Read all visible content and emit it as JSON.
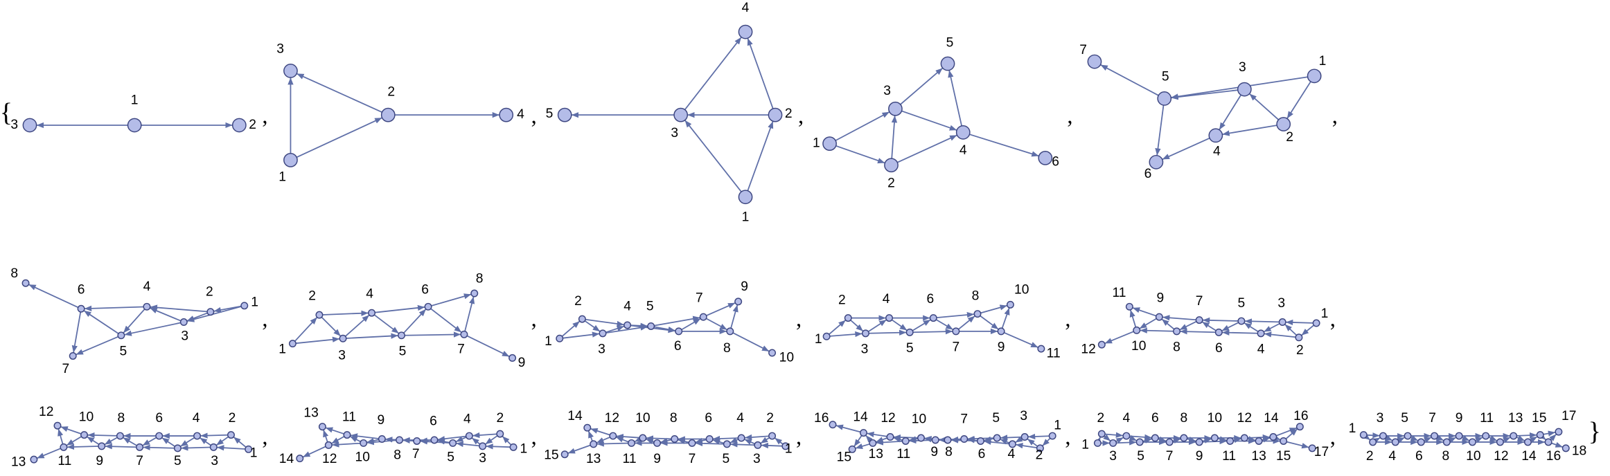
{
  "open": "{",
  "close": "}",
  "separator": ",",
  "graphs": [
    {
      "nodes": [
        "1",
        "2",
        "3"
      ]
    },
    {
      "nodes": [
        "1",
        "2",
        "3",
        "4"
      ]
    },
    {
      "nodes": [
        "1",
        "2",
        "3",
        "4",
        "5"
      ]
    },
    {
      "nodes": [
        "1",
        "2",
        "3",
        "4",
        "5",
        "6"
      ]
    },
    {
      "nodes": [
        "1",
        "2",
        "3",
        "4",
        "5",
        "6",
        "7"
      ]
    },
    {
      "nodes": [
        "1",
        "2",
        "3",
        "4",
        "5",
        "6",
        "7",
        "8"
      ]
    },
    {
      "nodes": [
        "1",
        "2",
        "3",
        "4",
        "5",
        "6",
        "7",
        "8",
        "9"
      ]
    },
    {
      "nodes": [
        "1",
        "2",
        "3",
        "4",
        "5",
        "6",
        "7",
        "8",
        "9",
        "10"
      ]
    },
    {
      "nodes": [
        "1",
        "2",
        "3",
        "4",
        "5",
        "6",
        "7",
        "8",
        "9",
        "10",
        "11"
      ]
    },
    {
      "nodes": [
        "1",
        "2",
        "3",
        "4",
        "5",
        "6",
        "7",
        "8",
        "9",
        "10",
        "11",
        "12"
      ]
    },
    {
      "nodes": [
        "1",
        "2",
        "3",
        "4",
        "5",
        "6",
        "7",
        "8",
        "9",
        "10",
        "11",
        "12",
        "13"
      ]
    },
    {
      "nodes": [
        "1",
        "2",
        "3",
        "4",
        "5",
        "6",
        "7",
        "8",
        "9",
        "10",
        "11",
        "12",
        "13",
        "14"
      ]
    },
    {
      "nodes": [
        "1",
        "2",
        "3",
        "4",
        "5",
        "6",
        "7",
        "8",
        "9",
        "10",
        "11",
        "12",
        "13",
        "14",
        "15"
      ]
    },
    {
      "nodes": [
        "1",
        "2",
        "3",
        "4",
        "5",
        "6",
        "7",
        "8",
        "9",
        "10",
        "11",
        "12",
        "13",
        "14",
        "15",
        "16"
      ]
    },
    {
      "nodes": [
        "1",
        "2",
        "3",
        "4",
        "5",
        "6",
        "7",
        "8",
        "9",
        "10",
        "11",
        "12",
        "13",
        "14",
        "15",
        "16",
        "17"
      ]
    },
    {
      "nodes": [
        "1",
        "2",
        "3",
        "4",
        "5",
        "6",
        "7",
        "8",
        "9",
        "10",
        "11",
        "12",
        "13",
        "14",
        "15",
        "16",
        "17",
        "18"
      ]
    }
  ]
}
